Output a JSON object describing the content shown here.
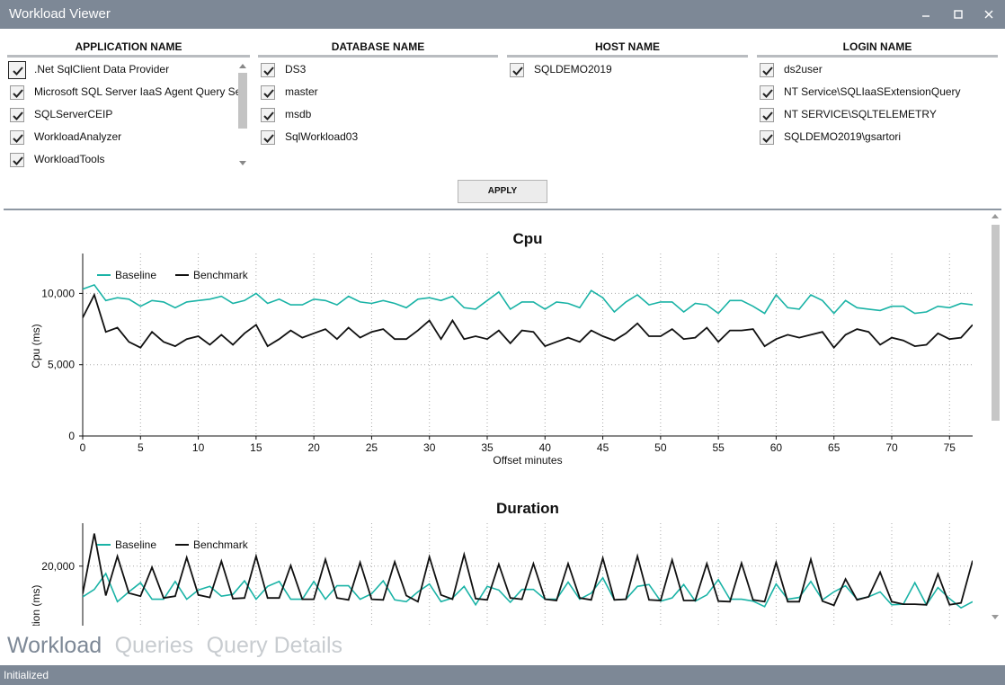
{
  "window": {
    "title": "Workload Viewer"
  },
  "filters": [
    {
      "key": "application",
      "header": "APPLICATION NAME",
      "items": [
        ".Net SqlClient Data Provider",
        "Microsoft SQL Server IaaS Agent Query Service",
        "SQLServerCEIP",
        "WorkloadAnalyzer",
        "WorkloadTools"
      ]
    },
    {
      "key": "database",
      "header": "DATABASE NAME",
      "items": [
        "DS3",
        "master",
        "msdb",
        "SqlWorkload03"
      ]
    },
    {
      "key": "host",
      "header": "HOST NAME",
      "items": [
        "SQLDEMO2019"
      ]
    },
    {
      "key": "login",
      "header": "LOGIN NAME",
      "items": [
        "ds2user",
        "NT Service\\SQLIaaSExtensionQuery",
        "NT SERVICE\\SQLTELEMETRY",
        "SQLDEMO2019\\gsartori"
      ]
    }
  ],
  "apply_label": "APPLY",
  "tabs": [
    "Workload",
    "Queries",
    "Query Details"
  ],
  "active_tab": "Workload",
  "status": "Initialized",
  "colors": {
    "baseline": "#1ab3a6",
    "benchmark": "#111111",
    "chrome": "#7d8896"
  },
  "chart_data": [
    {
      "type": "line",
      "title": "Cpu",
      "xlabel": "Offset minutes",
      "ylabel": "Cpu (ms)",
      "xlim": [
        0,
        77
      ],
      "ylim": [
        0,
        12800
      ],
      "xticks": [
        0,
        5,
        10,
        15,
        20,
        25,
        30,
        35,
        40,
        45,
        50,
        55,
        60,
        65,
        70,
        75
      ],
      "yticks": [
        0,
        5000,
        10000
      ],
      "ytick_labels": [
        "0",
        "5,000",
        "10,000"
      ],
      "legend": "top-left",
      "series": [
        {
          "name": "Baseline",
          "color": "#1ab3a6",
          "x": [
            0,
            1,
            2,
            3,
            4,
            5,
            6,
            7,
            8,
            9,
            10,
            11,
            12,
            13,
            14,
            15,
            16,
            17,
            18,
            19,
            20,
            21,
            22,
            23,
            24,
            25,
            26,
            27,
            28,
            29,
            30,
            31,
            32,
            33,
            34,
            35,
            36,
            37,
            38,
            39,
            40,
            41,
            42,
            43,
            44,
            45,
            46,
            47,
            48,
            49,
            50,
            51,
            52,
            53,
            54,
            55,
            56,
            57,
            58,
            59,
            60,
            61,
            62,
            63,
            64,
            65,
            66,
            67,
            68,
            69,
            70,
            71,
            72,
            73,
            74,
            75,
            76,
            77
          ],
          "values": [
            10300,
            10600,
            9500,
            9700,
            9600,
            9100,
            9500,
            9400,
            9000,
            9400,
            9500,
            9600,
            9800,
            9300,
            9500,
            10000,
            9300,
            9600,
            9200,
            9200,
            9600,
            9500,
            9200,
            9800,
            9400,
            9300,
            9500,
            9300,
            9000,
            9600,
            9700,
            9500,
            9800,
            9000,
            8900,
            9500,
            10100,
            8900,
            9400,
            9400,
            8900,
            9400,
            9300,
            9000,
            10200,
            9700,
            8700,
            9400,
            9900,
            9200,
            9400,
            9400,
            8700,
            9300,
            9200,
            8600,
            9500,
            9500,
            9100,
            8600,
            9900,
            9000,
            8900,
            9900,
            9500,
            8600,
            9500,
            9000,
            8900,
            8800,
            9100,
            9100,
            8600,
            8700,
            9100,
            9000,
            9300,
            9200
          ]
        },
        {
          "name": "Benchmark",
          "color": "#111111",
          "x": [
            0,
            1,
            2,
            3,
            4,
            5,
            6,
            7,
            8,
            9,
            10,
            11,
            12,
            13,
            14,
            15,
            16,
            17,
            18,
            19,
            20,
            21,
            22,
            23,
            24,
            25,
            26,
            27,
            28,
            29,
            30,
            31,
            32,
            33,
            34,
            35,
            36,
            37,
            38,
            39,
            40,
            41,
            42,
            43,
            44,
            45,
            46,
            47,
            48,
            49,
            50,
            51,
            52,
            53,
            54,
            55,
            56,
            57,
            58,
            59,
            60,
            61,
            62,
            63,
            64,
            65,
            66,
            67,
            68,
            69,
            70,
            71,
            72,
            73,
            74,
            75,
            76,
            77
          ],
          "values": [
            8300,
            9900,
            7300,
            7600,
            6600,
            6200,
            7300,
            6600,
            6300,
            6800,
            7000,
            6400,
            7100,
            6400,
            7200,
            7800,
            6300,
            6800,
            7400,
            6900,
            7200,
            7500,
            6800,
            7600,
            6900,
            7300,
            7500,
            6800,
            6800,
            7400,
            8100,
            6800,
            8100,
            6800,
            7000,
            6800,
            7400,
            6500,
            7400,
            7300,
            6300,
            6600,
            6900,
            6600,
            7400,
            7000,
            6700,
            7200,
            7900,
            7000,
            7000,
            7500,
            6800,
            6900,
            7600,
            6600,
            7400,
            7400,
            7500,
            6300,
            6800,
            7100,
            6900,
            7100,
            7300,
            6200,
            7100,
            7500,
            7300,
            6400,
            6900,
            6700,
            6300,
            6400,
            7200,
            6800,
            6900,
            7800
          ]
        }
      ]
    },
    {
      "type": "line",
      "title": "Duration",
      "xlabel": "",
      "ylabel": "tion (ms)",
      "xlim": [
        0,
        77
      ],
      "yview": [
        10000,
        27000
      ],
      "yticks": [
        20000
      ],
      "ytick_labels": [
        "20,000"
      ],
      "legend": "top-left",
      "series": [
        {
          "name": "Baseline",
          "color": "#1ab3a6",
          "x": [
            0,
            1,
            2,
            3,
            4,
            5,
            6,
            7,
            8,
            9,
            10,
            11,
            12,
            13,
            14,
            15,
            16,
            17,
            18,
            19,
            20,
            21,
            22,
            23,
            24,
            25,
            26,
            27,
            28,
            29,
            30,
            31,
            32,
            33,
            34,
            35,
            36,
            37,
            38,
            39,
            40,
            41,
            42,
            43,
            44,
            45,
            46,
            47,
            48,
            49,
            50,
            51,
            52,
            53,
            54,
            55,
            56,
            57,
            58,
            59,
            60,
            61,
            62,
            63,
            64,
            65,
            66,
            67,
            68,
            69,
            70,
            71,
            72,
            73,
            74,
            75,
            76,
            77
          ],
          "values": [
            15000,
            16200,
            18800,
            14200,
            15800,
            17300,
            14600,
            14600,
            17500,
            14600,
            16100,
            16700,
            15100,
            15400,
            17600,
            14600,
            16700,
            17500,
            14600,
            14600,
            17500,
            14600,
            16800,
            16800,
            14600,
            15500,
            17600,
            14500,
            14200,
            15800,
            17100,
            14200,
            14800,
            16700,
            13700,
            16700,
            16100,
            14100,
            16200,
            16200,
            14600,
            14600,
            17400,
            14600,
            15600,
            18100,
            14500,
            14600,
            16700,
            17000,
            14300,
            14800,
            17000,
            14300,
            15300,
            17800,
            14600,
            14600,
            14300,
            13400,
            17100,
            14600,
            14900,
            17500,
            14500,
            15800,
            16800,
            14600,
            15000,
            15800,
            13700,
            13800,
            17300,
            13700,
            16500,
            14700,
            13200,
            14200
          ]
        },
        {
          "name": "Benchmark",
          "color": "#111111",
          "x": [
            0,
            1,
            2,
            3,
            4,
            5,
            6,
            7,
            8,
            9,
            10,
            11,
            12,
            13,
            14,
            15,
            16,
            17,
            18,
            19,
            20,
            21,
            22,
            23,
            24,
            25,
            26,
            27,
            28,
            29,
            30,
            31,
            32,
            33,
            34,
            35,
            36,
            37,
            38,
            39,
            40,
            41,
            42,
            43,
            44,
            45,
            46,
            47,
            48,
            49,
            50,
            51,
            52,
            53,
            54,
            55,
            56,
            57,
            58,
            59,
            60,
            61,
            62,
            63,
            64,
            65,
            66,
            67,
            68,
            69,
            70,
            71,
            72,
            73,
            74,
            75,
            76,
            77
          ],
          "values": [
            15500,
            25300,
            15200,
            21600,
            15600,
            15100,
            19800,
            14800,
            15100,
            21400,
            15300,
            14900,
            20800,
            14700,
            14800,
            21600,
            14800,
            14800,
            20100,
            14600,
            14600,
            21100,
            14800,
            14500,
            20600,
            14600,
            14500,
            20700,
            15200,
            14200,
            21500,
            15300,
            14600,
            21900,
            14700,
            14500,
            20300,
            14800,
            14600,
            20400,
            14600,
            14400,
            20400,
            14800,
            14500,
            21300,
            14500,
            14600,
            21600,
            14500,
            14400,
            21000,
            14400,
            14400,
            20400,
            14300,
            14200,
            20500,
            14500,
            14200,
            20600,
            14200,
            14200,
            21100,
            14300,
            13600,
            17900,
            14500,
            15000,
            19000,
            14200,
            13800,
            13800,
            13700,
            18700,
            13700,
            14000,
            20900
          ]
        }
      ]
    }
  ]
}
